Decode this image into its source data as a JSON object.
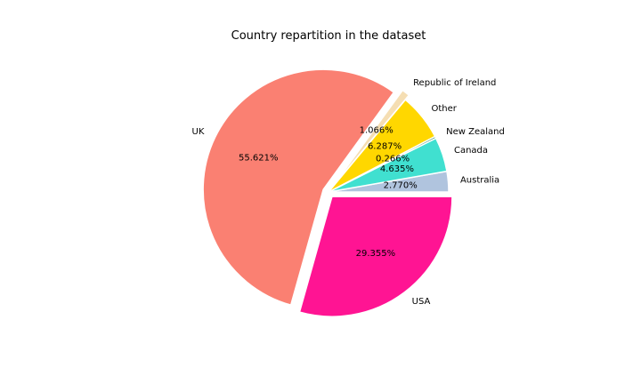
{
  "chart_data": {
    "type": "pie",
    "title": "Country repartition in the dataset",
    "categories": [
      "Australia",
      "Canada",
      "New Zealand",
      "Other",
      "Republic of Ireland",
      "UK",
      "USA"
    ],
    "values": [
      2.77,
      4.635,
      0.266,
      6.287,
      1.066,
      55.621,
      29.355
    ],
    "percent_labels": [
      "2.770%",
      "4.635%",
      "0.266%",
      "6.287%",
      "1.066%",
      "55.621%",
      "29.355%"
    ],
    "colors": [
      "#b0c4de",
      "#40e0d0",
      "#2e8b57",
      "#ffd700",
      "#f5deb3",
      "#fa8072",
      "#ff1493"
    ],
    "exploded": [
      "Republic of Ireland",
      "UK",
      "USA"
    ],
    "start_angle_deg": 0,
    "direction": "counterclockwise",
    "legend": "none"
  }
}
